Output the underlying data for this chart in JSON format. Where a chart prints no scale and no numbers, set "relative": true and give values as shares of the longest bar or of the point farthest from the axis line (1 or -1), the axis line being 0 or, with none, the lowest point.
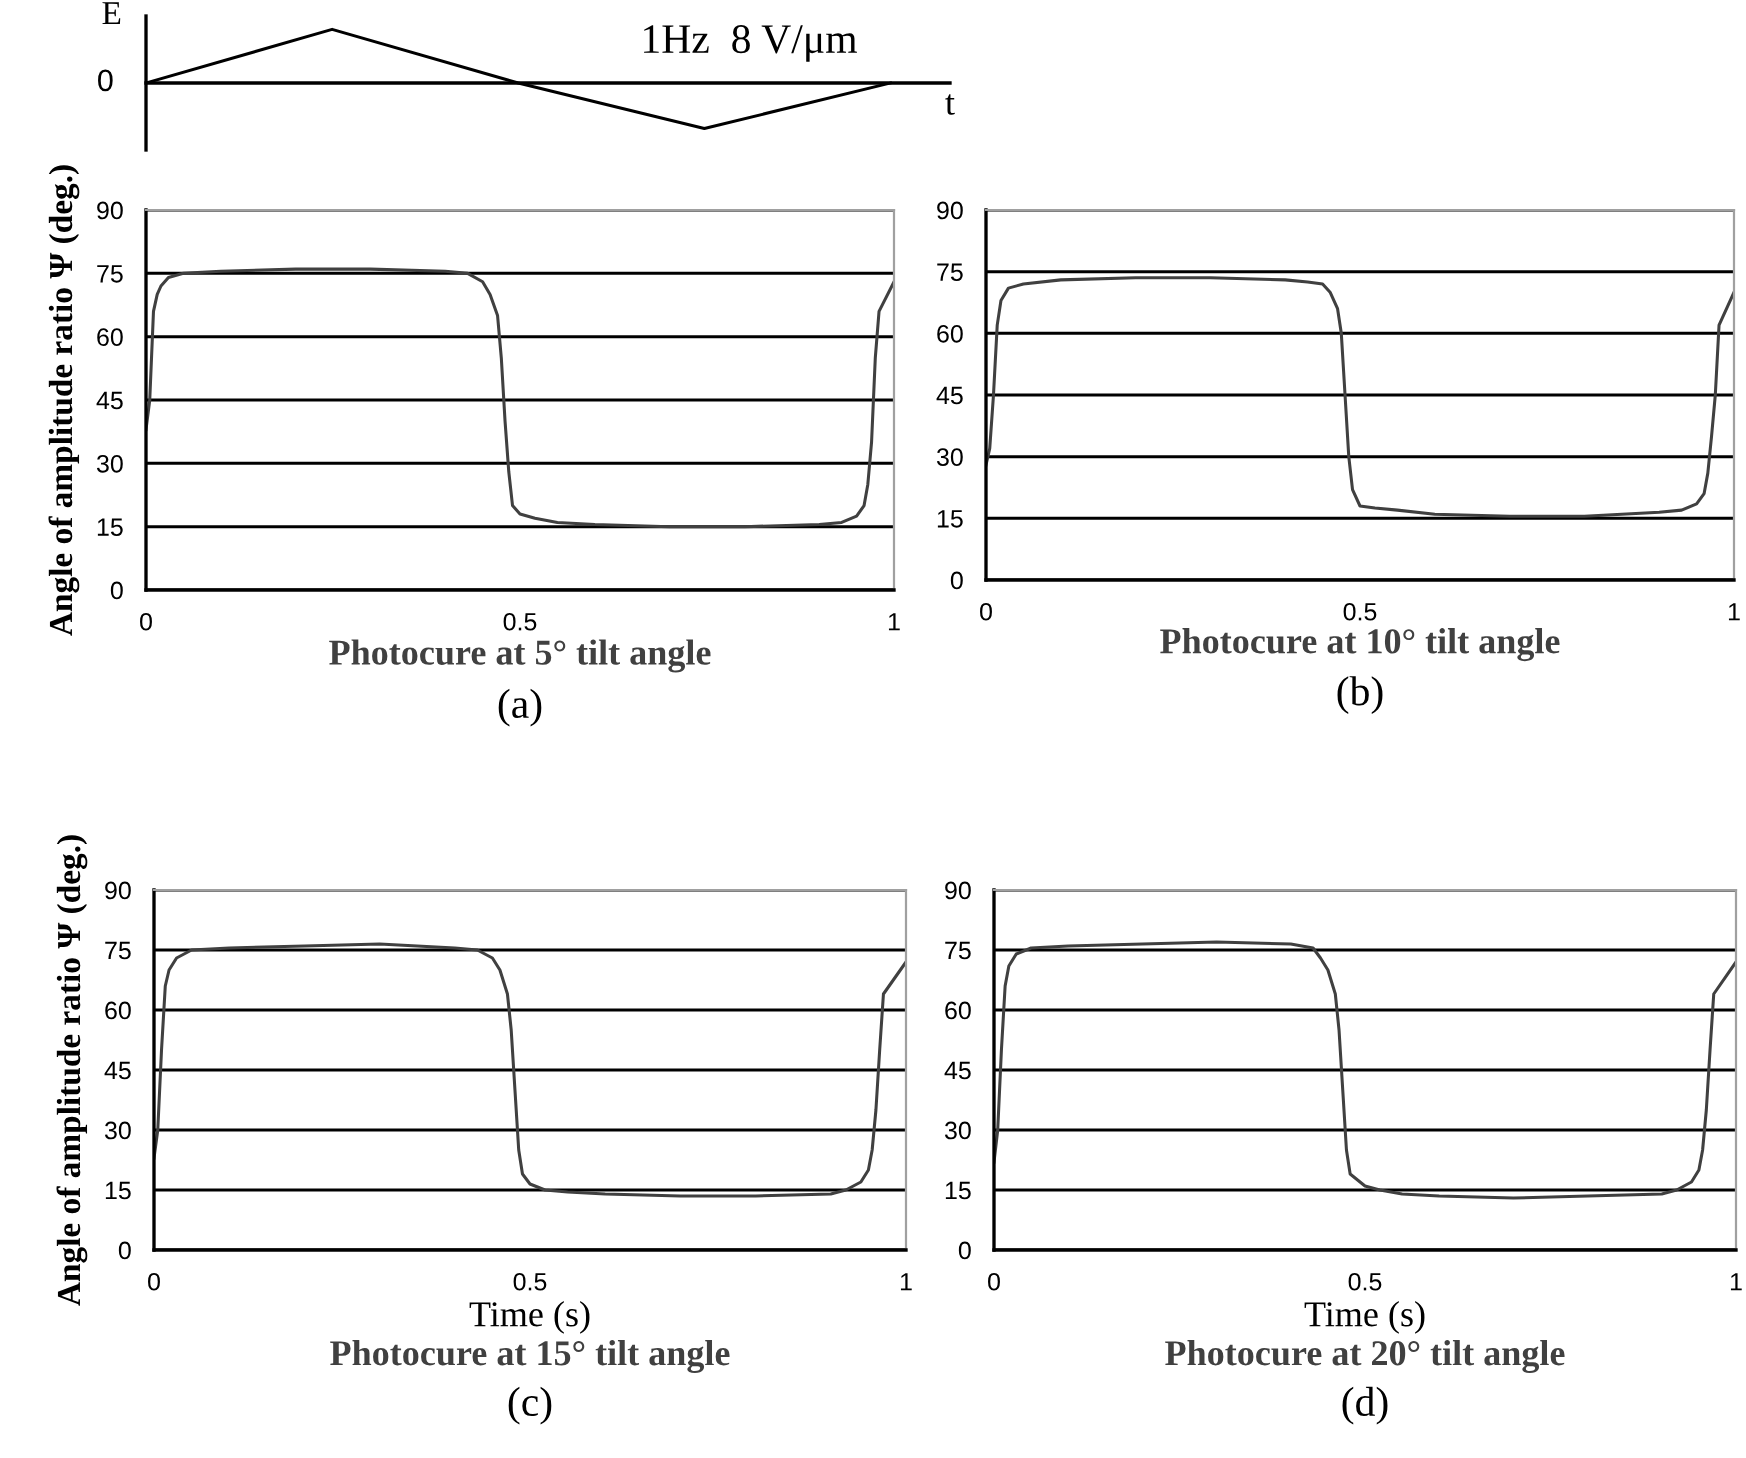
{
  "chart_data": [
    {
      "type": "line",
      "relative": true,
      "categories": [
        null,
        null,
        null,
        null,
        null
      ],
      "xlabel": "t",
      "ylabel": "E",
      "annotations": [
        "0",
        "1Hz  8 V/μm"
      ],
      "series": [
        {
          "color": "#000000",
          "values": [
            0,
            1,
            0,
            -0.85,
            0
          ]
        }
      ]
    },
    {
      "type": "line",
      "title": "Photocure at 5° tilt angle",
      "ylabel": "Angle of amplitude ratio Ψ (deg.)",
      "annotations": [
        "(a)"
      ],
      "xlim": [
        0,
        1
      ],
      "ylim": [
        0,
        90
      ],
      "xticks": [
        0,
        0.5,
        1
      ],
      "yticks": [
        0,
        15,
        30,
        45,
        60,
        75,
        90
      ],
      "grid": "y",
      "series": [
        {
          "color": "#404040",
          "x": [
            0,
            0.005,
            0.01,
            0.015,
            0.02,
            0.03,
            0.05,
            0.1,
            0.2,
            0.3,
            0.4,
            0.43,
            0.45,
            0.46,
            0.47,
            0.475,
            0.48,
            0.485,
            0.49,
            0.5,
            0.52,
            0.55,
            0.6,
            0.7,
            0.8,
            0.9,
            0.93,
            0.95,
            0.96,
            0.965,
            0.97,
            0.975,
            0.98,
            1.0
          ],
          "values": [
            38,
            45,
            66,
            70,
            72,
            74,
            75,
            75.5,
            76,
            76,
            75.5,
            75,
            73,
            70,
            65,
            55,
            40,
            28,
            20,
            18,
            17,
            16,
            15.5,
            15,
            15,
            15.5,
            16,
            17.5,
            20,
            25,
            35,
            55,
            66,
            73
          ]
        }
      ]
    },
    {
      "type": "line",
      "title": "Photocure at 10° tilt angle",
      "annotations": [
        "(b)"
      ],
      "xlim": [
        0,
        1
      ],
      "ylim": [
        0,
        90
      ],
      "xticks": [
        0,
        0.5,
        1
      ],
      "yticks": [
        0,
        15,
        30,
        45,
        60,
        75,
        90
      ],
      "grid": "y",
      "series": [
        {
          "color": "#404040",
          "x": [
            0,
            0.005,
            0.01,
            0.015,
            0.02,
            0.03,
            0.05,
            0.1,
            0.2,
            0.3,
            0.4,
            0.43,
            0.45,
            0.46,
            0.47,
            0.475,
            0.48,
            0.485,
            0.49,
            0.5,
            0.52,
            0.55,
            0.6,
            0.7,
            0.8,
            0.9,
            0.93,
            0.95,
            0.96,
            0.965,
            0.97,
            0.975,
            0.98,
            1.0
          ],
          "values": [
            28,
            32,
            45,
            62,
            68,
            71,
            72,
            73,
            73.5,
            73.5,
            73,
            72.5,
            72,
            70,
            66,
            60,
            45,
            30,
            22,
            18,
            17.5,
            17,
            16,
            15.5,
            15.5,
            16.5,
            17,
            18.5,
            21,
            26,
            35,
            45,
            62,
            70
          ]
        }
      ]
    },
    {
      "type": "line",
      "title": "Photocure at 15° tilt angle",
      "xlabel": "Time (s)",
      "ylabel": "Angle of amplitude ratio Ψ (deg.)",
      "annotations": [
        "(c)"
      ],
      "xlim": [
        0,
        1
      ],
      "ylim": [
        0,
        90
      ],
      "xticks": [
        0,
        0.5,
        1
      ],
      "yticks": [
        0,
        15,
        30,
        45,
        60,
        75,
        90
      ],
      "grid": "y",
      "series": [
        {
          "color": "#404040",
          "x": [
            0,
            0.005,
            0.01,
            0.015,
            0.02,
            0.03,
            0.05,
            0.1,
            0.2,
            0.3,
            0.4,
            0.43,
            0.45,
            0.46,
            0.47,
            0.475,
            0.48,
            0.485,
            0.49,
            0.5,
            0.52,
            0.55,
            0.6,
            0.7,
            0.8,
            0.9,
            0.92,
            0.94,
            0.95,
            0.955,
            0.96,
            0.965,
            0.97,
            1.0
          ],
          "values": [
            23,
            30,
            50,
            66,
            70,
            73,
            75,
            75.5,
            76,
            76.5,
            75.5,
            75,
            73,
            70,
            64,
            55,
            40,
            25,
            19,
            16.5,
            15,
            14.5,
            14,
            13.5,
            13.5,
            14,
            15,
            17,
            20,
            25,
            35,
            50,
            64,
            72
          ]
        }
      ]
    },
    {
      "type": "line",
      "title": "Photocure at 20° tilt angle",
      "xlabel": "Time (s)",
      "annotations": [
        "(d)"
      ],
      "xlim": [
        0,
        1
      ],
      "ylim": [
        0,
        90
      ],
      "xticks": [
        0,
        0.5,
        1
      ],
      "yticks": [
        0,
        15,
        30,
        45,
        60,
        75,
        90
      ],
      "grid": "y",
      "series": [
        {
          "color": "#404040",
          "x": [
            0,
            0.005,
            0.01,
            0.015,
            0.02,
            0.03,
            0.05,
            0.1,
            0.2,
            0.3,
            0.4,
            0.43,
            0.44,
            0.45,
            0.46,
            0.465,
            0.47,
            0.475,
            0.48,
            0.5,
            0.52,
            0.55,
            0.6,
            0.7,
            0.8,
            0.9,
            0.92,
            0.94,
            0.95,
            0.955,
            0.96,
            0.965,
            0.97,
            1.0
          ],
          "values": [
            22,
            30,
            50,
            66,
            71,
            74,
            75.5,
            76,
            76.5,
            77,
            76.5,
            75.5,
            73,
            70,
            64,
            55,
            40,
            25,
            19,
            16,
            15,
            14,
            13.5,
            13,
            13.5,
            14,
            15,
            17,
            20,
            25,
            35,
            50,
            64,
            72
          ]
        }
      ]
    }
  ]
}
